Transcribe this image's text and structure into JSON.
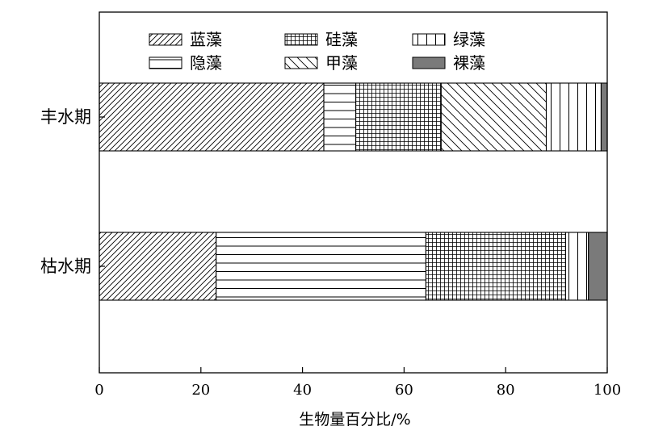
{
  "chart_data": {
    "type": "bar",
    "orientation": "horizontal",
    "stacked": true,
    "categories": [
      "丰水期",
      "枯水期"
    ],
    "series": [
      {
        "name": "蓝藻",
        "pattern": "diagonal-forward",
        "values": [
          44.2,
          23.0
        ]
      },
      {
        "name": "隐藻",
        "pattern": "horizontal-lines",
        "values": [
          6.3,
          41.3
        ]
      },
      {
        "name": "硅藻",
        "pattern": "grid",
        "values": [
          16.8,
          27.5
        ]
      },
      {
        "name": "甲藻",
        "pattern": "diagonal-back",
        "values": [
          20.7,
          0
        ]
      },
      {
        "name": "绿藻",
        "pattern": "vertical-lines",
        "values": [
          10.8,
          4.5
        ]
      },
      {
        "name": "裸藻",
        "pattern": "solid-gray",
        "values": [
          1.2,
          3.7
        ]
      }
    ],
    "legend_order": [
      "蓝藻",
      "硅藻",
      "绿藻",
      "隐藻",
      "甲藻",
      "裸藻"
    ],
    "xlabel": "生物量百分比/%",
    "ylabel": "",
    "title": "",
    "xlim": [
      0,
      100
    ],
    "xticks": [
      0,
      20,
      40,
      60,
      80,
      100
    ],
    "legend_position": "top",
    "grid": false,
    "colors": {
      "solid": "#7a7a7a",
      "line": "#000000"
    }
  }
}
